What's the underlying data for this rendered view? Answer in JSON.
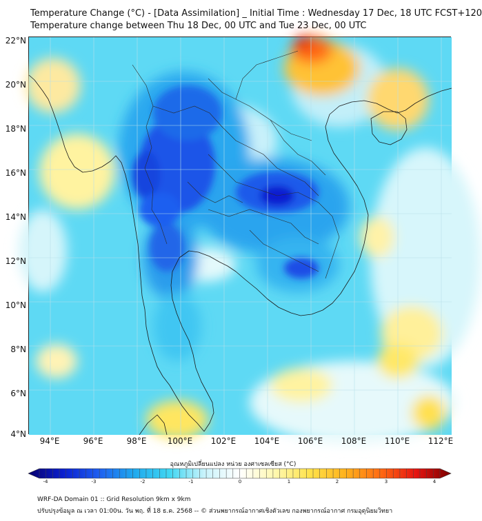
{
  "title_line1": "Temperature Change (°C) - [Data Assimilation] _ Initial Time : Wednesday 17 Dec, 18 UTC FCST+120",
  "title_line2": "Temperature change between Thu 18 Dec, 00 UTC and Tue 23 Dec, 00 UTC",
  "map": {
    "lat_labels": [
      "22°N",
      "20°N",
      "18°N",
      "16°N",
      "14°N",
      "12°N",
      "10°N",
      "8°N",
      "6°N",
      "4°N"
    ],
    "lon_labels": [
      "94°E",
      "96°E",
      "98°E",
      "100°E",
      "102°E",
      "104°E",
      "106°E",
      "108°E",
      "110°E",
      "112°E"
    ],
    "lat_range": [
      4,
      22
    ],
    "lon_range": [
      93,
      112.5
    ]
  },
  "colorbar": {
    "title": "อุณหภูมิเปลี่ยนแปลง หน่วย องศาเซลเซียส (°C)",
    "ticks": [
      "-4",
      "-3",
      "-2",
      "-1",
      "0",
      "1",
      "2",
      "3",
      "4"
    ],
    "range": [
      -4,
      4
    ],
    "colors": [
      "#08006e",
      "#0a1fd0",
      "#1e5ef0",
      "#1fa9ee",
      "#3fd6f2",
      "#c9f3fb",
      "#ffffff",
      "#fff8b0",
      "#ffe24a",
      "#ffb21c",
      "#ff6a12",
      "#e61410",
      "#7a0000"
    ]
  },
  "footer_line1": "WRF-DA Domain 01 :: Grid Resolution 9km x 9km",
  "footer_line2": "ปรับปรุงข้อมูล ณ เวลา 01:00น. วัน พฤ. ที่ 18 ธ.ค. 2568 -- © ส่วนพยากรณ์อากาศเชิงตัวเลข กองพยากรณ์อากาศ กรมอุตุนิยมวิทยา"
}
